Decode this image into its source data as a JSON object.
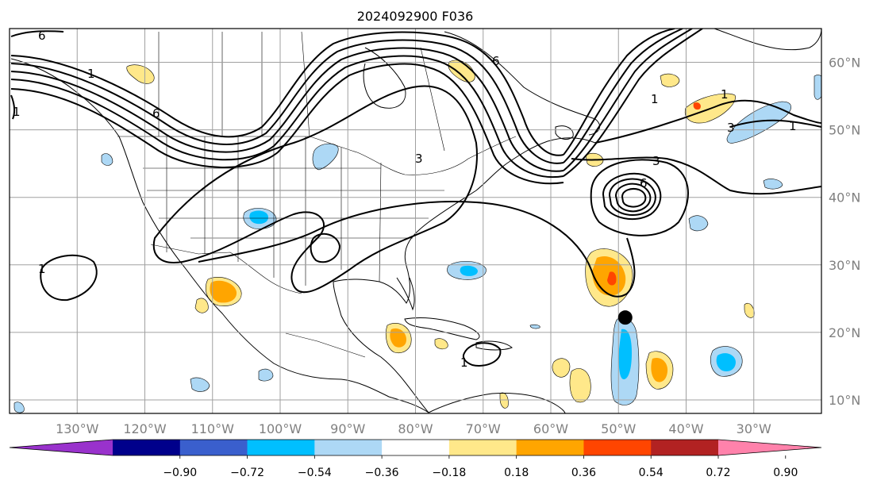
{
  "title": "2024092900 F036",
  "map": {
    "lon_range": [
      -140,
      -20
    ],
    "lat_range": [
      8,
      65
    ],
    "lon_ticks": [
      "130°W",
      "120°W",
      "110°W",
      "100°W",
      "90°W",
      "80°W",
      "70°W",
      "60°W",
      "50°W",
      "40°W",
      "30°W"
    ],
    "lat_ticks": [
      "60°N",
      "50°N",
      "40°N",
      "30°N",
      "20°N",
      "10°N"
    ],
    "grid": true,
    "contour_labels": [
      "6",
      "1",
      "6",
      "6",
      "1",
      "3",
      "1",
      "3",
      "6",
      "1",
      "3",
      "1",
      "1",
      "1"
    ],
    "storm_marker": {
      "lon": -49,
      "lat": 22.2
    }
  },
  "colorbar": {
    "ticks": [
      "−0.90",
      "−0.72",
      "−0.54",
      "−0.36",
      "−0.18",
      "0.18",
      "0.36",
      "0.54",
      "0.72",
      "0.90"
    ],
    "colors": [
      "#9932cc",
      "#00008b",
      "#3a5fcd",
      "#00bfff",
      "#add8f5",
      "#ffffff",
      "#ffe88a",
      "#ffa500",
      "#ff4500",
      "#b22222",
      "#ff82ab"
    ]
  }
}
